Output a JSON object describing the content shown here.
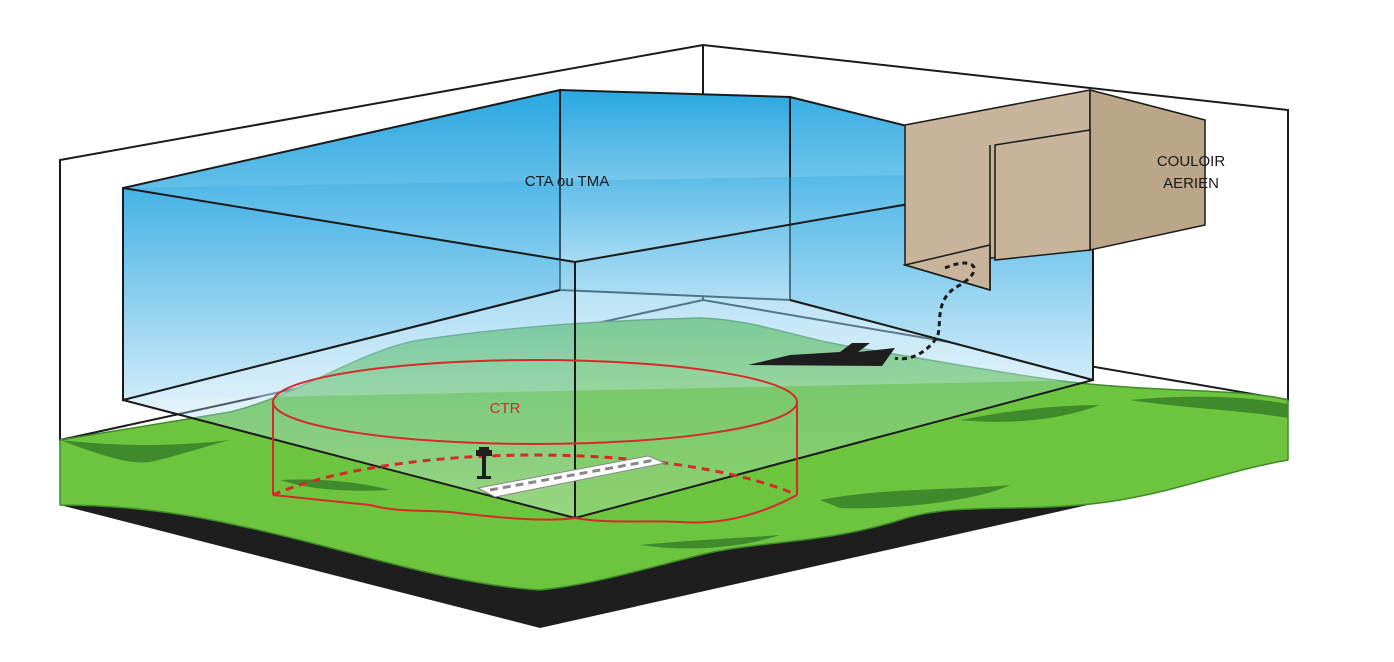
{
  "labels": {
    "cta_tma": "CTA ou TMA",
    "ctr": "CTR",
    "couloir_line1": "COULOIR",
    "couloir_line2": "AERIEN"
  },
  "colors": {
    "sky_top": "#29a7e1",
    "sky_bottom": "#e6f5fc",
    "ground": "#6dc43f",
    "ground_shadow": "#3f8a2a",
    "earth": "#1e1e1e",
    "corridor": "#c8b49a",
    "ctr_red": "#d42a2a",
    "outline": "#1a1a1a"
  },
  "icons": [
    "control-tower-icon",
    "aircraft-icon"
  ]
}
